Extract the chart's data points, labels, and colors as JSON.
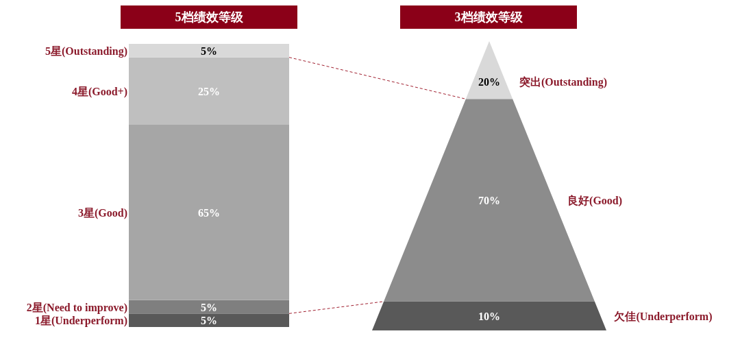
{
  "chart_data": [
    {
      "type": "bar",
      "stacked": true,
      "title": "5档绩效等级",
      "categories": [
        null
      ],
      "legend": false,
      "series": [
        {
          "name": "1星(Underperform)",
          "color": "#595959",
          "values": [
            5
          ],
          "value_labels": [
            "5%"
          ]
        },
        {
          "name": "2星(Need to improve)",
          "color": "#7f7f7f",
          "values": [
            5
          ],
          "value_labels": [
            "5%"
          ]
        },
        {
          "name": "3星(Good)",
          "color": "#a6a6a6",
          "values": [
            65
          ],
          "value_labels": [
            "65%"
          ]
        },
        {
          "name": "4星(Good+)",
          "color": "#bfbfbf",
          "values": [
            25
          ],
          "value_labels": [
            "25%"
          ]
        },
        {
          "name": "5星(Outstanding)",
          "color": "#d9d9d9",
          "values": [
            5
          ],
          "value_labels": [
            "5%"
          ]
        }
      ]
    },
    {
      "type": "other",
      "title": "3档绩效等级",
      "categories": [
        "突出(Outstanding)",
        "良好(Good)",
        "欠佳(Underperform)"
      ],
      "values": [
        20,
        70,
        10
      ],
      "value_labels": [
        "20%",
        "70%",
        "10%"
      ],
      "colors": [
        "#d9d9d9",
        "#8c8c8c",
        "#595959"
      ]
    }
  ]
}
